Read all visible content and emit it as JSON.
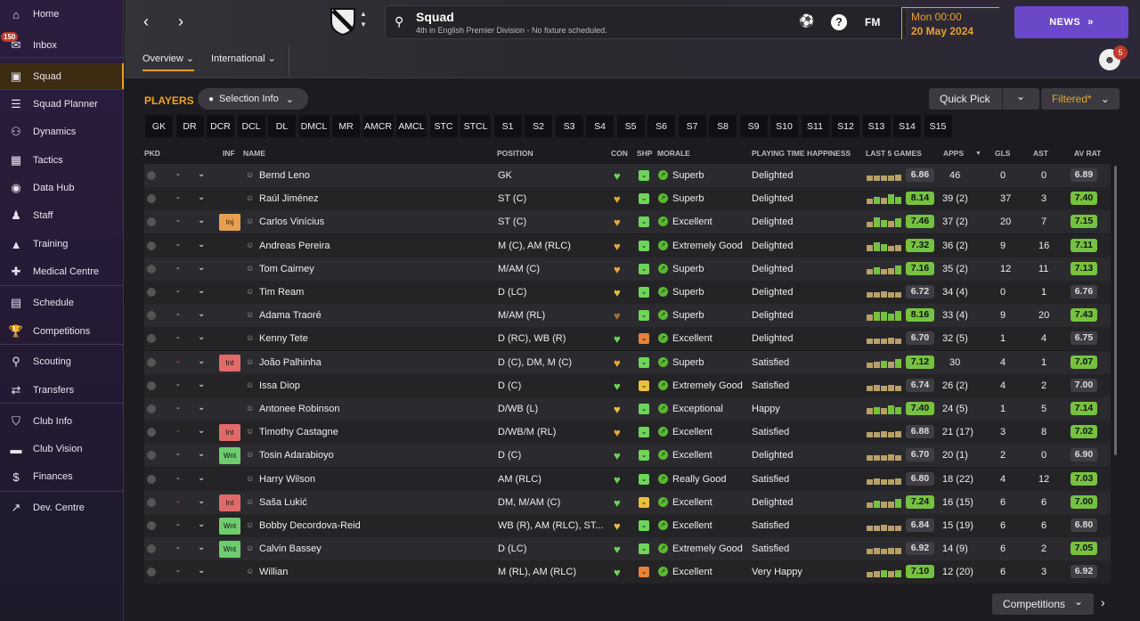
{
  "sidebar": {
    "items": [
      {
        "label": "Home",
        "icon": "home-icon"
      },
      {
        "label": "Inbox",
        "icon": "inbox-icon",
        "badge": "150"
      },
      {
        "label": "Squad",
        "icon": "shirt-icon",
        "active": true
      },
      {
        "label": "Squad Planner",
        "icon": "clipboard-icon"
      },
      {
        "label": "Dynamics",
        "icon": "people-icon"
      },
      {
        "label": "Tactics",
        "icon": "tactics-board-icon"
      },
      {
        "label": "Data Hub",
        "icon": "globe-icon"
      },
      {
        "label": "Staff",
        "icon": "staff-icon"
      },
      {
        "label": "Training",
        "icon": "cone-icon"
      },
      {
        "label": "Medical Centre",
        "icon": "medical-kit-icon"
      },
      {
        "label": "Schedule",
        "icon": "calendar-icon"
      },
      {
        "label": "Competitions",
        "icon": "trophy-icon"
      },
      {
        "label": "Scouting",
        "icon": "magnifier-icon"
      },
      {
        "label": "Transfers",
        "icon": "transfer-icon"
      },
      {
        "label": "Club Info",
        "icon": "shield-icon"
      },
      {
        "label": "Club Vision",
        "icon": "briefcase-icon"
      },
      {
        "label": "Finances",
        "icon": "money-icon"
      },
      {
        "label": "Dev. Centre",
        "icon": "trend-icon"
      }
    ]
  },
  "header": {
    "title": "Squad",
    "subtitle": "4th in English Premier Division - No fixture scheduled.",
    "time": "Mon 00:00",
    "date": "20 May 2024",
    "news": "NEWS",
    "fm": "FM",
    "help": "?",
    "avatar_badge": "5"
  },
  "tabs": [
    {
      "label": "Overview ⌄",
      "active": true
    },
    {
      "label": "International ⌄"
    }
  ],
  "toolbar": {
    "players": "PLAYERS",
    "selection": "Selection Info",
    "quick_pick": "Quick Pick",
    "filtered": "Filtered*",
    "competitions": "Competitions"
  },
  "positions": [
    "GK",
    "DR",
    "DCR",
    "DCL",
    "DL",
    "DMCL",
    "MR",
    "AMCR",
    "AMCL",
    "STC",
    "STCL",
    "S1",
    "S2",
    "S3",
    "S4",
    "S5",
    "S6",
    "S7",
    "S8",
    "S9",
    "S10",
    "S11",
    "S12",
    "S13",
    "S14",
    "S15"
  ],
  "columns": {
    "pkd": "PKD",
    "inf": "INF",
    "name": "NAME",
    "position": "POSITION",
    "con": "CON",
    "shp": "SHP",
    "morale": "MORALE",
    "pth": "PLAYING TIME HAPPINESS",
    "last5": "LAST 5 GAMES",
    "apps": "APPS",
    "gls": "GLS",
    "ast": "AST",
    "avrat": "AV RAT"
  },
  "players": [
    {
      "inf": "",
      "name": "Bernd Leno",
      "pos": "GK",
      "heart": "#6ed45a",
      "shp": "#6ed45a",
      "morale": "Superb",
      "pth": "Delighted",
      "l5": "6.86",
      "l5g": false,
      "apps": "46",
      "gls": "0",
      "ast": "0",
      "av": "6.89",
      "avg": false,
      "bars": [
        0.5,
        0.5,
        0.5,
        0.5,
        0.6
      ]
    },
    {
      "inf": "",
      "name": "Raúl Jiménez",
      "pos": "ST (C)",
      "heart": "#e8a83a",
      "shp": "#6ed45a",
      "morale": "Superb",
      "pth": "Delighted",
      "l5": "8.14",
      "l5g": true,
      "apps": "39 (2)",
      "gls": "37",
      "ast": "3",
      "av": "7.40",
      "avg": true,
      "bars": [
        0.5,
        0.7,
        0.6,
        0.9,
        0.7
      ]
    },
    {
      "inf": "Inj",
      "name": "Carlos Vinícius",
      "pos": "ST (C)",
      "heart": "#e8a83a",
      "shp": "#6ed45a",
      "morale": "Excellent",
      "pth": "Delighted",
      "l5": "7.46",
      "l5g": true,
      "apps": "37 (2)",
      "gls": "20",
      "ast": "7",
      "av": "7.15",
      "avg": true,
      "bars": [
        0.5,
        0.9,
        0.7,
        0.6,
        0.8
      ]
    },
    {
      "inf": "",
      "name": "Andreas Pereira",
      "pos": "M (C), AM (RLC)",
      "heart": "#e8a83a",
      "shp": "#6ed45a",
      "morale": "Extremely Good",
      "pth": "Delighted",
      "l5": "7.32",
      "l5g": true,
      "apps": "36 (2)",
      "gls": "9",
      "ast": "16",
      "av": "7.11",
      "avg": true,
      "bars": [
        0.6,
        0.8,
        0.7,
        0.5,
        0.6
      ]
    },
    {
      "inf": "",
      "name": "Tom Cairney",
      "pos": "M/AM (C)",
      "heart": "#e8a83a",
      "shp": "#6ed45a",
      "morale": "Superb",
      "pth": "Delighted",
      "l5": "7.16",
      "l5g": true,
      "apps": "35 (2)",
      "gls": "12",
      "ast": "11",
      "av": "7.13",
      "avg": true,
      "bars": [
        0.5,
        0.7,
        0.5,
        0.6,
        0.8
      ]
    },
    {
      "inf": "",
      "name": "Tim Ream",
      "pos": "D (LC)",
      "heart": "#e8c03a",
      "shp": "#6ed45a",
      "morale": "Superb",
      "pth": "Delighted",
      "l5": "6.72",
      "l5g": false,
      "apps": "34 (4)",
      "gls": "0",
      "ast": "1",
      "av": "6.76",
      "avg": false,
      "bars": [
        0.5,
        0.5,
        0.6,
        0.5,
        0.5
      ]
    },
    {
      "inf": "",
      "name": "Adama Traoré",
      "pos": "M/AM (RL)",
      "heart": "#a0703a",
      "shp": "#6ed45a",
      "morale": "Superb",
      "pth": "Delighted",
      "l5": "8.16",
      "l5g": true,
      "apps": "33 (4)",
      "gls": "9",
      "ast": "20",
      "av": "7.43",
      "avg": true,
      "bars": [
        0.6,
        0.8,
        0.8,
        0.7,
        0.9
      ]
    },
    {
      "inf": "",
      "name": "Kenny Tete",
      "pos": "D (RC), WB (R)",
      "heart": "#6ed45a",
      "shp": "#e8823a",
      "morale": "Excellent",
      "pth": "Delighted",
      "l5": "6.70",
      "l5g": false,
      "apps": "32 (5)",
      "gls": "1",
      "ast": "4",
      "av": "6.75",
      "avg": false,
      "bars": [
        0.5,
        0.5,
        0.5,
        0.6,
        0.5
      ]
    },
    {
      "inf": "Int",
      "name": "João Palhinha",
      "pos": "D (C), DM, M (C)",
      "heart": "#e8a83a",
      "shp": "#6ed45a",
      "morale": "Superb",
      "pth": "Satisfied",
      "l5": "7.12",
      "l5g": true,
      "apps": "30",
      "gls": "4",
      "ast": "1",
      "av": "7.07",
      "avg": true,
      "bars": [
        0.5,
        0.6,
        0.7,
        0.6,
        0.8
      ]
    },
    {
      "inf": "",
      "name": "Issa Diop",
      "pos": "D (C)",
      "heart": "#6ed45a",
      "shp": "#e8c03a",
      "morale": "Extremely Good",
      "pth": "Satisfied",
      "l5": "6.74",
      "l5g": false,
      "apps": "26 (2)",
      "gls": "4",
      "ast": "2",
      "av": "7.00",
      "avg": false,
      "bars": [
        0.5,
        0.6,
        0.5,
        0.6,
        0.5
      ]
    },
    {
      "inf": "",
      "name": "Antonee Robinson",
      "pos": "D/WB (L)",
      "heart": "#e8c03a",
      "shp": "#6ed45a",
      "morale": "Exceptional",
      "pth": "Happy",
      "l5": "7.40",
      "l5g": true,
      "apps": "24 (5)",
      "gls": "1",
      "ast": "5",
      "av": "7.14",
      "avg": true,
      "bars": [
        0.6,
        0.7,
        0.6,
        0.8,
        0.7
      ]
    },
    {
      "inf": "Int",
      "name": "Timothy Castagne",
      "pos": "D/WB/M (RL)",
      "heart": "#e8a83a",
      "shp": "#6ed45a",
      "morale": "Excellent",
      "pth": "Satisfied",
      "l5": "6.88",
      "l5g": false,
      "apps": "21 (17)",
      "gls": "3",
      "ast": "8",
      "av": "7.02",
      "avg": true,
      "bars": [
        0.5,
        0.5,
        0.6,
        0.5,
        0.6
      ]
    },
    {
      "inf": "Wnt",
      "name": "Tosin Adarabioyo",
      "pos": "D (C)",
      "heart": "#6ed45a",
      "shp": "#6ed45a",
      "morale": "Excellent",
      "pth": "Delighted",
      "l5": "6.70",
      "l5g": false,
      "apps": "20 (1)",
      "gls": "2",
      "ast": "0",
      "av": "6.90",
      "avg": false,
      "bars": [
        0.5,
        0.5,
        0.5,
        0.6,
        0.5
      ]
    },
    {
      "inf": "",
      "name": "Harry Wilson",
      "pos": "AM (RLC)",
      "heart": "#6ed45a",
      "shp": "#6ed45a",
      "morale": "Really Good",
      "pth": "Satisfied",
      "l5": "6.80",
      "l5g": false,
      "apps": "18 (22)",
      "gls": "4",
      "ast": "12",
      "av": "7.03",
      "avg": true,
      "bars": [
        0.5,
        0.6,
        0.5,
        0.5,
        0.6
      ]
    },
    {
      "inf": "Int",
      "name": "Saša Lukić",
      "pos": "DM, M/AM (C)",
      "heart": "#6ed45a",
      "shp": "#e8c03a",
      "morale": "Excellent",
      "pth": "Delighted",
      "l5": "7.24",
      "l5g": true,
      "apps": "16 (15)",
      "gls": "6",
      "ast": "6",
      "av": "7.00",
      "avg": true,
      "bars": [
        0.5,
        0.7,
        0.6,
        0.6,
        0.8
      ]
    },
    {
      "inf": "Wnt",
      "name": "Bobby Decordova-Reid",
      "pos": "WB (R), AM (RLC), ST...",
      "heart": "#e8c03a",
      "shp": "#6ed45a",
      "morale": "Excellent",
      "pth": "Satisfied",
      "l5": "6.84",
      "l5g": false,
      "apps": "15 (19)",
      "gls": "6",
      "ast": "6",
      "av": "6.80",
      "avg": false,
      "bars": [
        0.5,
        0.5,
        0.6,
        0.5,
        0.5
      ]
    },
    {
      "inf": "Wnt",
      "name": "Calvin Bassey",
      "pos": "D (LC)",
      "heart": "#6ed45a",
      "shp": "#6ed45a",
      "morale": "Extremely Good",
      "pth": "Satisfied",
      "l5": "6.92",
      "l5g": false,
      "apps": "14 (9)",
      "gls": "6",
      "ast": "2",
      "av": "7.05",
      "avg": true,
      "bars": [
        0.5,
        0.6,
        0.5,
        0.6,
        0.6
      ]
    },
    {
      "inf": "",
      "name": "Willian",
      "pos": "M (RL), AM (RLC)",
      "heart": "#6ed45a",
      "shp": "#e8823a",
      "morale": "Excellent",
      "pth": "Very Happy",
      "l5": "7.10",
      "l5g": true,
      "apps": "12 (20)",
      "gls": "6",
      "ast": "3",
      "av": "6.92",
      "avg": false,
      "bars": [
        0.5,
        0.6,
        0.7,
        0.6,
        0.7
      ]
    }
  ]
}
